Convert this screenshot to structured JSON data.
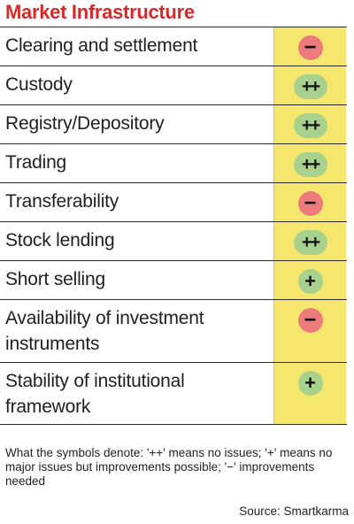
{
  "title": "Market Infrastructure",
  "colors": {
    "title": "#d62a2a",
    "column_bg": "#f5e66d",
    "positive": "#a9d18e",
    "negative": "#ee7b7b"
  },
  "rows": [
    {
      "label": "Clearing and settlement",
      "symbol": "−",
      "rating": "minus"
    },
    {
      "label": "Custody",
      "symbol": "++",
      "rating": "plusplus"
    },
    {
      "label": "Registry/Depository",
      "symbol": "++",
      "rating": "plusplus"
    },
    {
      "label": "Trading",
      "symbol": "++",
      "rating": "plusplus"
    },
    {
      "label": "Transferability",
      "symbol": "−",
      "rating": "minus"
    },
    {
      "label": "Stock lending",
      "symbol": "++",
      "rating": "plusplus"
    },
    {
      "label": "Short selling",
      "symbol": "+",
      "rating": "plus"
    },
    {
      "label": "Availability of investment instruments",
      "symbol": "−",
      "rating": "minus"
    },
    {
      "label": "Stability of institutional framework",
      "symbol": "+",
      "rating": "plus"
    }
  ],
  "footnote": "What the symbols denote: '++' means no issues; '+' means no major issues but improvements possible; '−' improvements needed",
  "source": "Source: Smartkarma"
}
